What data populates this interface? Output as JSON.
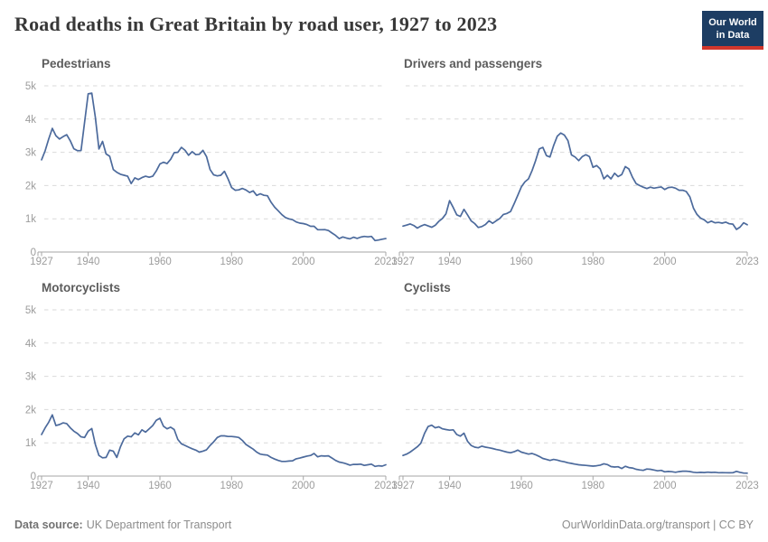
{
  "header": {
    "logo_line1": "Our World",
    "logo_line2": "in Data"
  },
  "footer": {
    "source_label": "Data source:",
    "source_value": "UK Department for Transport",
    "credit": "OurWorldinData.org/transport | CC BY"
  },
  "colors": {
    "line": "#4c6a9c",
    "logo_bg": "#1d3d63",
    "logo_red": "#d2372c"
  },
  "chart_data": {
    "type": "line",
    "title": "Road deaths in Great Britain by road user, 1927 to 2023",
    "x_start": 1927,
    "x_end": 2023,
    "x_step": 1,
    "xticks": [
      1927,
      1940,
      1960,
      1980,
      2000,
      2023
    ],
    "ylim": [
      0,
      5000
    ],
    "yticks": [
      "0",
      "1k",
      "2k",
      "3k",
      "4k",
      "5k"
    ],
    "grid": "horizontal dashed",
    "legend": "none (one panel per series)",
    "line_color": "#4c6a9c",
    "panels": [
      {
        "title": "Pedestrians",
        "values": [
          2775,
          3050,
          3400,
          3720,
          3500,
          3400,
          3470,
          3529,
          3345,
          3110,
          3050,
          3055,
          3900,
          4760,
          4780,
          4060,
          3100,
          3330,
          2950,
          2880,
          2480,
          2400,
          2340,
          2310,
          2280,
          2060,
          2230,
          2180,
          2240,
          2280,
          2250,
          2280,
          2440,
          2650,
          2700,
          2660,
          2790,
          2990,
          3000,
          3150,
          3060,
          2910,
          3020,
          2930,
          2940,
          3060,
          2870,
          2480,
          2320,
          2290,
          2310,
          2430,
          2200,
          1940,
          1860,
          1870,
          1914,
          1868,
          1790,
          1841,
          1703,
          1753,
          1706,
          1694,
          1496,
          1347,
          1241,
          1124,
          1038,
          997,
          973,
          906,
          870,
          857,
          826,
          775,
          774,
          671,
          671,
          675,
          646,
          572,
          500,
          405,
          453,
          420,
          398,
          446,
          409,
          448,
          470,
          456,
          470,
          346,
          361,
          385,
          405
        ]
      },
      {
        "title": "Drivers and passengers",
        "values": [
          780,
          810,
          845,
          800,
          720,
          780,
          825,
          785,
          745,
          805,
          925,
          1010,
          1150,
          1545,
          1340,
          1120,
          1070,
          1285,
          1120,
          940,
          855,
          740,
          765,
          830,
          940,
          865,
          940,
          1010,
          1130,
          1160,
          1220,
          1450,
          1700,
          1960,
          2110,
          2200,
          2450,
          2750,
          3100,
          3150,
          2900,
          2860,
          3200,
          3480,
          3580,
          3520,
          3350,
          2920,
          2860,
          2750,
          2870,
          2930,
          2870,
          2550,
          2600,
          2500,
          2200,
          2310,
          2200,
          2370,
          2270,
          2330,
          2570,
          2500,
          2250,
          2060,
          2000,
          1950,
          1910,
          1950,
          1920,
          1940,
          1960,
          1880,
          1940,
          1950,
          1920,
          1860,
          1860,
          1820,
          1660,
          1320,
          1130,
          1020,
          970,
          880,
          930,
          880,
          890,
          870,
          900,
          850,
          840,
          680,
          750,
          880,
          820
        ]
      },
      {
        "title": "Motorcyclists",
        "values": [
          1250,
          1450,
          1620,
          1840,
          1520,
          1550,
          1600,
          1580,
          1450,
          1350,
          1280,
          1180,
          1160,
          1350,
          1430,
          950,
          620,
          550,
          560,
          780,
          750,
          560,
          880,
          1120,
          1200,
          1180,
          1300,
          1240,
          1390,
          1320,
          1420,
          1520,
          1680,
          1740,
          1500,
          1420,
          1470,
          1400,
          1100,
          970,
          920,
          870,
          820,
          780,
          720,
          750,
          790,
          920,
          1030,
          1160,
          1210,
          1210,
          1190,
          1190,
          1180,
          1160,
          1070,
          950,
          880,
          810,
          720,
          660,
          640,
          630,
          560,
          510,
          470,
          440,
          440,
          450,
          460,
          520,
          540,
          570,
          600,
          620,
          680,
          580,
          610,
          600,
          610,
          540,
          470,
          420,
          400,
          370,
          330,
          350,
          350,
          360,
          320,
          340,
          360,
          290,
          310,
          300,
          340
        ]
      },
      {
        "title": "Cyclists",
        "values": [
          620,
          660,
          720,
          800,
          880,
          990,
          1280,
          1490,
          1530,
          1450,
          1480,
          1420,
          1400,
          1380,
          1390,
          1250,
          1200,
          1290,
          1050,
          920,
          870,
          850,
          900,
          870,
          850,
          830,
          800,
          780,
          750,
          720,
          700,
          730,
          780,
          720,
          690,
          660,
          680,
          640,
          590,
          530,
          500,
          470,
          500,
          480,
          450,
          430,
          400,
          380,
          360,
          340,
          330,
          320,
          310,
          300,
          310,
          330,
          370,
          345,
          286,
          271,
          280,
          227,
          294,
          256,
          242,
          204,
          186,
          172,
          213,
          203,
          183,
          158,
          172,
          127,
          138,
          130,
          114,
          134,
          148,
          146,
          136,
          115,
          104,
          111,
          107,
          118,
          109,
          113,
          100,
          102,
          101,
          99,
          100,
          141,
          111,
          91,
          87
        ]
      }
    ]
  }
}
